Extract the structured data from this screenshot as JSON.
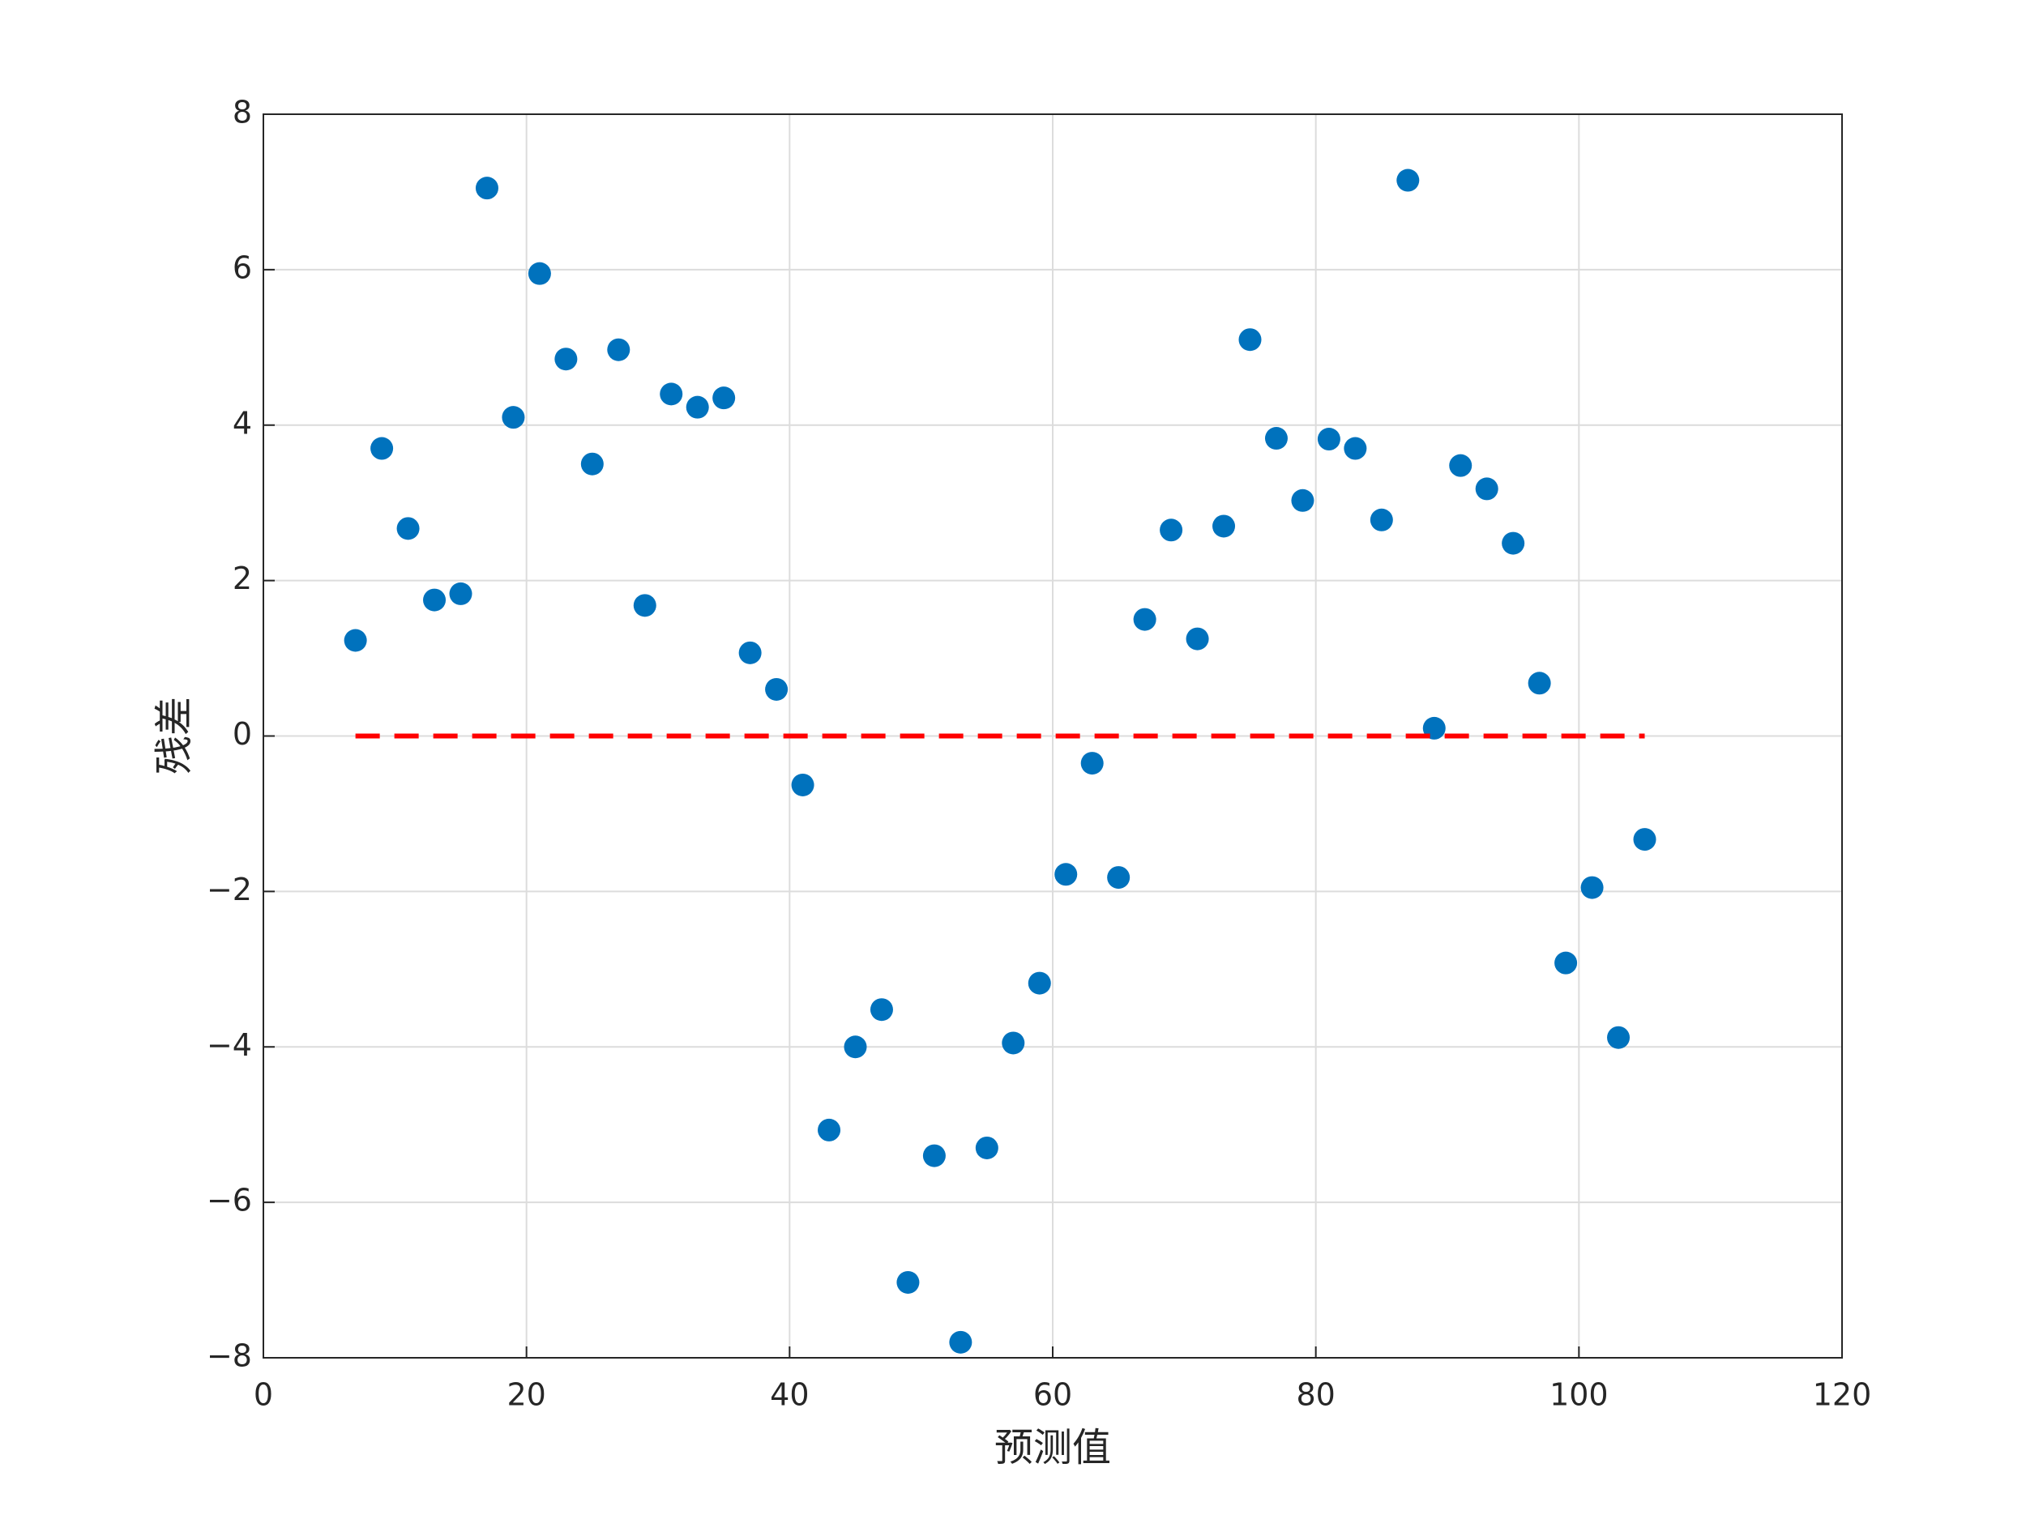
{
  "chart_data": {
    "type": "scatter",
    "xlabel": "预测值",
    "ylabel": "残差",
    "x": [
      7,
      9,
      11,
      13,
      15,
      17,
      19,
      21,
      23,
      25,
      27,
      29,
      31,
      33,
      35,
      37,
      39,
      41,
      43,
      45,
      47,
      49,
      51,
      53,
      55,
      57,
      59,
      61,
      63,
      65,
      67,
      69,
      71,
      73,
      75,
      77,
      79,
      81,
      83,
      85,
      87,
      89,
      91,
      93,
      95,
      97,
      99,
      101,
      103,
      105
    ],
    "values": [
      1.23,
      3.7,
      2.67,
      1.75,
      1.83,
      7.05,
      4.1,
      5.95,
      4.85,
      3.5,
      4.97,
      1.68,
      4.4,
      4.23,
      4.35,
      1.07,
      0.6,
      -0.63,
      -5.07,
      -4.0,
      -3.52,
      -7.03,
      -5.4,
      -7.8,
      -5.3,
      -3.95,
      -3.18,
      -1.78,
      -0.35,
      -1.82,
      1.5,
      2.65,
      1.25,
      2.7,
      5.1,
      3.83,
      3.03,
      3.82,
      3.7,
      2.78,
      7.15,
      0.1,
      3.48,
      3.18,
      2.48,
      0.68,
      -2.92,
      -1.95,
      -3.88,
      -1.33
    ],
    "color": "#0072bd",
    "reference_line": {
      "x": [
        7,
        105
      ],
      "y": [
        0,
        0
      ],
      "color": "#ff0000"
    },
    "xlim": [
      0,
      120
    ],
    "xticks": [
      0,
      20,
      40,
      60,
      80,
      100,
      120
    ],
    "ylim": [
      -8,
      8
    ],
    "yticks": [
      {
        "value": -8,
        "label": "−8"
      },
      {
        "value": -6,
        "label": "−6"
      },
      {
        "value": -4,
        "label": "−4"
      },
      {
        "value": -2,
        "label": "−2"
      },
      0,
      2,
      4,
      6,
      8
    ],
    "grid": true
  }
}
